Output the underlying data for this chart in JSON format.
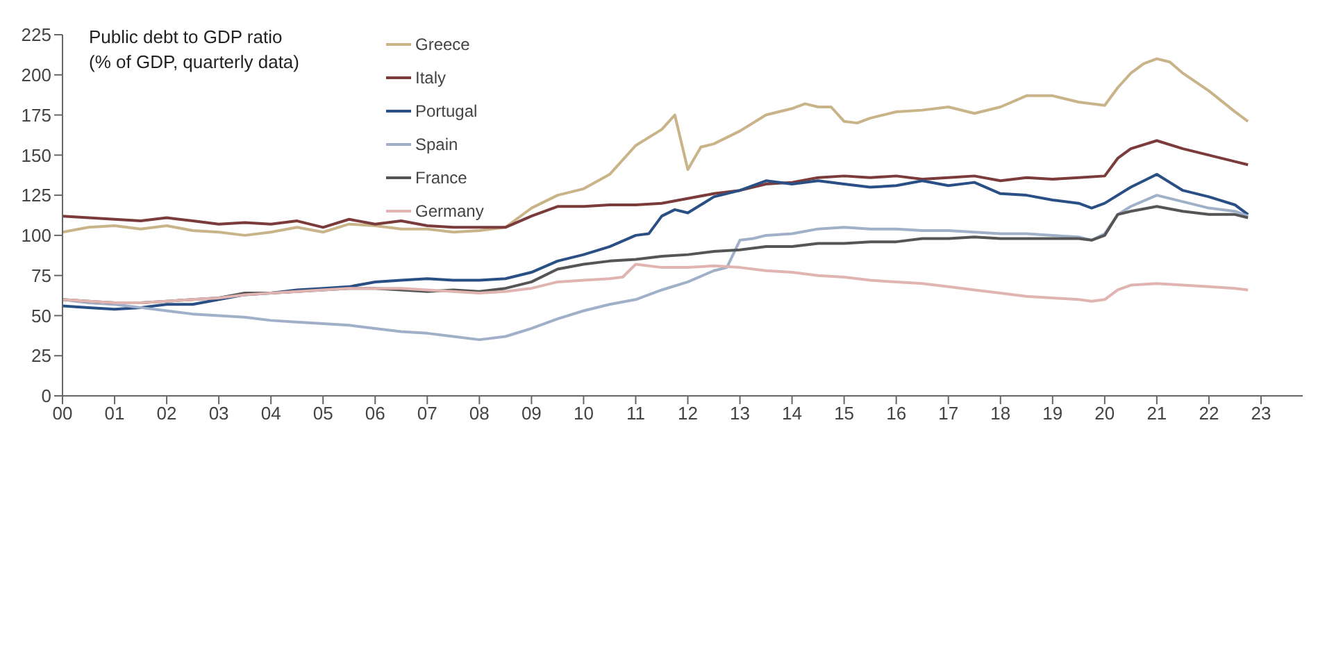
{
  "chart_data": {
    "type": "line",
    "title": "Public debt to GDP ratio",
    "subtitle": "(% of GDP, quarterly data)",
    "xlim": [
      2000,
      2023.8
    ],
    "xticks": [
      {
        "value": 2000,
        "label": "00"
      },
      {
        "value": 2001,
        "label": "01"
      },
      {
        "value": 2002,
        "label": "02"
      },
      {
        "value": 2003,
        "label": "03"
      },
      {
        "value": 2004,
        "label": "04"
      },
      {
        "value": 2005,
        "label": "05"
      },
      {
        "value": 2006,
        "label": "06"
      },
      {
        "value": 2007,
        "label": "07"
      },
      {
        "value": 2008,
        "label": "08"
      },
      {
        "value": 2009,
        "label": "09"
      },
      {
        "value": 2010,
        "label": "10"
      },
      {
        "value": 2011,
        "label": "11"
      },
      {
        "value": 2012,
        "label": "12"
      },
      {
        "value": 2013,
        "label": "13"
      },
      {
        "value": 2014,
        "label": "14"
      },
      {
        "value": 2015,
        "label": "15"
      },
      {
        "value": 2016,
        "label": "16"
      },
      {
        "value": 2017,
        "label": "17"
      },
      {
        "value": 2018,
        "label": "18"
      },
      {
        "value": 2019,
        "label": "19"
      },
      {
        "value": 2020,
        "label": "20"
      },
      {
        "value": 2021,
        "label": "21"
      },
      {
        "value": 2022,
        "label": "22"
      },
      {
        "value": 2023,
        "label": "23"
      }
    ],
    "ylim": [
      0,
      225
    ],
    "yticks": [
      0,
      25,
      50,
      75,
      100,
      125,
      150,
      175,
      200,
      225
    ],
    "grid": false,
    "legend": "top",
    "marker": "none",
    "line_style": "solid",
    "series": [
      {
        "name": "Greece",
        "color": "#c9b48a",
        "x": [
          2000,
          2000.5,
          2001,
          2001.5,
          2002,
          2002.5,
          2003,
          2003.5,
          2004,
          2004.5,
          2005,
          2005.5,
          2006,
          2006.5,
          2007,
          2007.5,
          2008,
          2008.5,
          2009,
          2009.5,
          2010,
          2010.5,
          2011,
          2011.5,
          2011.75,
          2012,
          2012.25,
          2012.5,
          2013,
          2013.5,
          2014,
          2014.25,
          2014.5,
          2014.75,
          2015,
          2015.25,
          2015.5,
          2016,
          2016.5,
          2017,
          2017.5,
          2018,
          2018.5,
          2019,
          2019.5,
          2020,
          2020.25,
          2020.5,
          2020.75,
          2021,
          2021.25,
          2021.5,
          2022,
          2022.5,
          2022.75
        ],
        "values": [
          102,
          105,
          106,
          104,
          106,
          103,
          102,
          100,
          102,
          105,
          102,
          107,
          106,
          104,
          104,
          102,
          103,
          105,
          117,
          125,
          129,
          138,
          156,
          166,
          175,
          141,
          155,
          157,
          165,
          175,
          179,
          182,
          180,
          180,
          171,
          170,
          173,
          177,
          178,
          180,
          176,
          180,
          187,
          187,
          183,
          181,
          192,
          201,
          207,
          210,
          208,
          201,
          190,
          177,
          171
        ]
      },
      {
        "name": "Italy",
        "color": "#7b3b3b",
        "x": [
          2000,
          2000.5,
          2001,
          2001.5,
          2002,
          2002.5,
          2003,
          2003.5,
          2004,
          2004.5,
          2005,
          2005.5,
          2006,
          2006.5,
          2007,
          2007.5,
          2008,
          2008.5,
          2009,
          2009.5,
          2010,
          2010.5,
          2011,
          2011.5,
          2012,
          2012.5,
          2013,
          2013.5,
          2014,
          2014.5,
          2015,
          2015.5,
          2016,
          2016.5,
          2017,
          2017.5,
          2018,
          2018.5,
          2019,
          2019.5,
          2020,
          2020.25,
          2020.5,
          2021,
          2021.5,
          2022,
          2022.5,
          2022.75
        ],
        "values": [
          112,
          111,
          110,
          109,
          111,
          109,
          107,
          108,
          107,
          109,
          105,
          110,
          107,
          109,
          106,
          105,
          105,
          105,
          112,
          118,
          118,
          119,
          119,
          120,
          123,
          126,
          128,
          132,
          133,
          136,
          137,
          136,
          137,
          135,
          136,
          137,
          134,
          136,
          135,
          136,
          137,
          148,
          154,
          159,
          154,
          150,
          146,
          144
        ]
      },
      {
        "name": "Portugal",
        "color": "#2a4f85",
        "x": [
          2000,
          2000.5,
          2001,
          2001.5,
          2002,
          2002.5,
          2003,
          2003.5,
          2004,
          2004.5,
          2005,
          2005.5,
          2006,
          2006.5,
          2007,
          2007.5,
          2008,
          2008.5,
          2009,
          2009.5,
          2010,
          2010.5,
          2011,
          2011.25,
          2011.5,
          2011.75,
          2012,
          2012.5,
          2013,
          2013.5,
          2014,
          2014.5,
          2015,
          2015.5,
          2016,
          2016.5,
          2017,
          2017.5,
          2018,
          2018.5,
          2019,
          2019.5,
          2019.75,
          2020,
          2020.5,
          2021,
          2021.5,
          2022,
          2022.5,
          2022.75
        ],
        "values": [
          56,
          55,
          54,
          55,
          57,
          57,
          60,
          63,
          64,
          66,
          67,
          68,
          71,
          72,
          73,
          72,
          72,
          73,
          77,
          84,
          88,
          93,
          100,
          101,
          112,
          116,
          114,
          124,
          128,
          134,
          132,
          134,
          132,
          130,
          131,
          134,
          131,
          133,
          126,
          125,
          122,
          120,
          117,
          120,
          130,
          138,
          128,
          124,
          119,
          113
        ]
      },
      {
        "name": "Spain",
        "color": "#9fb0c8",
        "x": [
          2000,
          2000.5,
          2001,
          2001.5,
          2002,
          2002.5,
          2003,
          2003.5,
          2004,
          2004.5,
          2005,
          2005.5,
          2006,
          2006.5,
          2007,
          2007.5,
          2008,
          2008.5,
          2009,
          2009.5,
          2010,
          2010.5,
          2011,
          2011.5,
          2012,
          2012.5,
          2012.75,
          2013,
          2013.25,
          2013.5,
          2014,
          2014.5,
          2015,
          2015.5,
          2016,
          2016.5,
          2017,
          2017.5,
          2018,
          2018.5,
          2019,
          2019.5,
          2019.75,
          2020,
          2020.25,
          2020.5,
          2021,
          2021.5,
          2022,
          2022.5,
          2022.75
        ],
        "values": [
          60,
          58,
          57,
          55,
          53,
          51,
          50,
          49,
          47,
          46,
          45,
          44,
          42,
          40,
          39,
          37,
          35,
          37,
          42,
          48,
          53,
          57,
          60,
          66,
          71,
          78,
          80,
          97,
          98,
          100,
          101,
          104,
          105,
          104,
          104,
          103,
          103,
          102,
          101,
          101,
          100,
          99,
          97,
          101,
          113,
          118,
          125,
          121,
          117,
          115,
          112
        ]
      },
      {
        "name": "France",
        "color": "#555555",
        "x": [
          2000,
          2000.5,
          2001,
          2001.5,
          2002,
          2002.5,
          2003,
          2003.5,
          2004,
          2004.5,
          2005,
          2005.5,
          2006,
          2006.5,
          2007,
          2007.5,
          2008,
          2008.5,
          2009,
          2009.5,
          2010,
          2010.5,
          2011,
          2011.5,
          2012,
          2012.5,
          2013,
          2013.5,
          2014,
          2014.5,
          2015,
          2015.5,
          2016,
          2016.5,
          2017,
          2017.5,
          2018,
          2018.5,
          2019,
          2019.5,
          2019.75,
          2020,
          2020.25,
          2020.5,
          2021,
          2021.5,
          2022,
          2022.5,
          2022.75
        ],
        "values": [
          60,
          59,
          58,
          58,
          59,
          60,
          61,
          64,
          64,
          65,
          66,
          67,
          67,
          66,
          65,
          66,
          65,
          67,
          71,
          79,
          82,
          84,
          85,
          87,
          88,
          90,
          91,
          93,
          93,
          95,
          95,
          96,
          96,
          98,
          98,
          99,
          98,
          98,
          98,
          98,
          97,
          100,
          113,
          115,
          118,
          115,
          113,
          113,
          111
        ]
      },
      {
        "name": "Germany",
        "color": "#e0b4b0",
        "x": [
          2000,
          2000.5,
          2001,
          2001.5,
          2002,
          2002.5,
          2003,
          2003.5,
          2004,
          2004.5,
          2005,
          2005.5,
          2006,
          2006.5,
          2007,
          2007.5,
          2008,
          2008.5,
          2009,
          2009.5,
          2010,
          2010.5,
          2010.75,
          2011,
          2011.5,
          2012,
          2012.5,
          2013,
          2013.5,
          2014,
          2014.5,
          2015,
          2015.5,
          2016,
          2016.5,
          2017,
          2017.5,
          2018,
          2018.5,
          2019,
          2019.5,
          2019.75,
          2020,
          2020.25,
          2020.5,
          2021,
          2021.5,
          2022,
          2022.5,
          2022.75
        ],
        "values": [
          60,
          59,
          58,
          58,
          59,
          60,
          61,
          63,
          64,
          65,
          66,
          67,
          67,
          67,
          66,
          65,
          64,
          65,
          67,
          71,
          72,
          73,
          74,
          82,
          80,
          80,
          81,
          80,
          78,
          77,
          75,
          74,
          72,
          71,
          70,
          68,
          66,
          64,
          62,
          61,
          60,
          59,
          60,
          66,
          69,
          70,
          69,
          68,
          67,
          66
        ]
      }
    ]
  }
}
